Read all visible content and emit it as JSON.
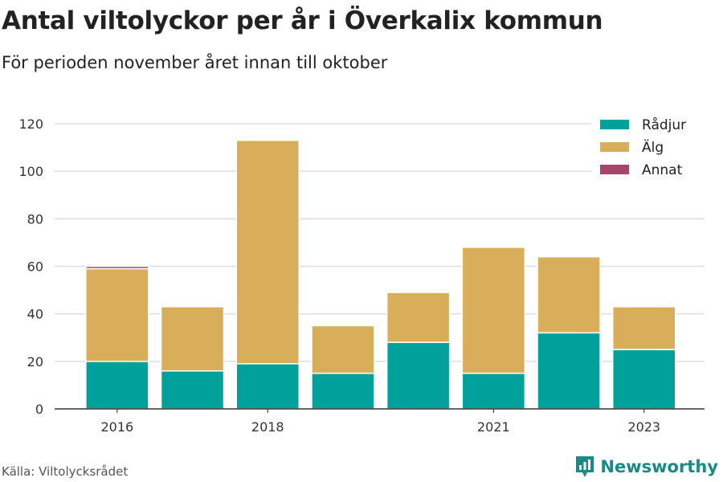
{
  "header": {
    "title": "Antal viltolyckor per år i Överkalix kommun",
    "subtitle": "För perioden november året innan till oktober"
  },
  "footer": {
    "source": "Källa: Viltolycksrådet",
    "brand": "Newsworthy",
    "brand_icon": "bar-chart-logo-icon",
    "brand_color": "#1a8a84"
  },
  "chart_data": {
    "type": "bar",
    "stacked": true,
    "categories": [
      "2016",
      "2017",
      "2018",
      "2019",
      "2020",
      "2021",
      "2022",
      "2023"
    ],
    "x_tick_labels": [
      "2016",
      "",
      "2018",
      "",
      "",
      "2021",
      "",
      "2023"
    ],
    "series": [
      {
        "name": "Rådjur",
        "color": "#00a19a",
        "values": [
          20,
          16,
          19,
          15,
          28,
          15,
          32,
          25
        ]
      },
      {
        "name": "Älg",
        "color": "#d9ae5b",
        "values": [
          39,
          27,
          94,
          20,
          21,
          53,
          32,
          18
        ]
      },
      {
        "name": "Annat",
        "color": "#a8446a",
        "values": [
          1,
          0,
          0,
          0,
          0,
          0,
          0,
          0
        ]
      }
    ],
    "ylim": [
      0,
      120
    ],
    "yticks": [
      0,
      20,
      40,
      60,
      80,
      100,
      120
    ],
    "grid": true,
    "legend": "top-right",
    "xlabel": "",
    "ylabel": ""
  }
}
